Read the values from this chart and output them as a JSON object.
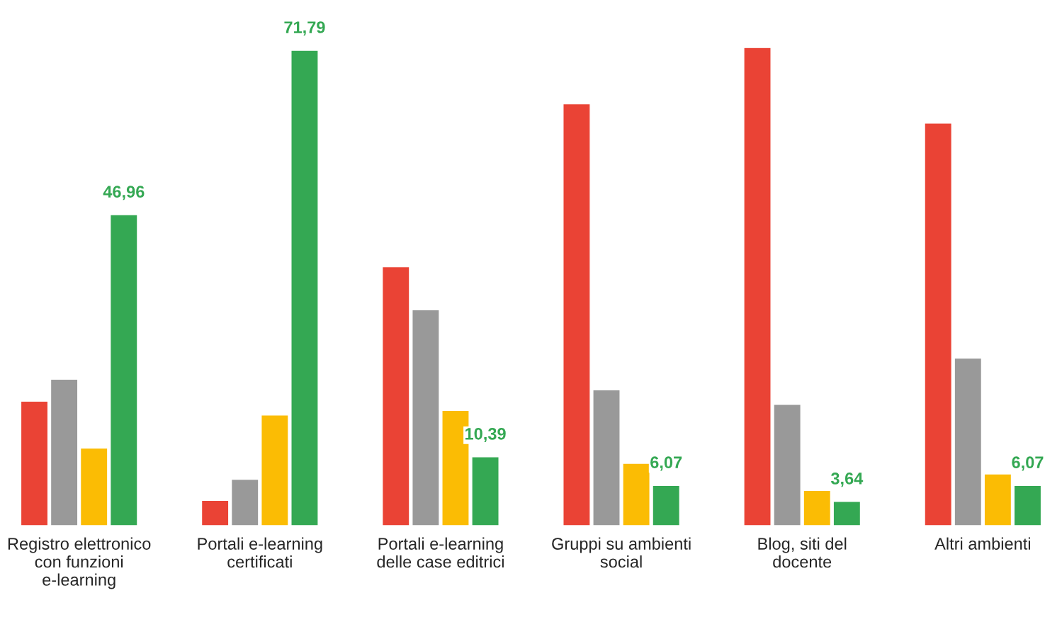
{
  "chart_data": {
    "type": "bar",
    "categories": [
      "Registro elettronico con funzioni e-learning",
      "Portali e-learning certificati",
      "Portali e-learning delle case editrici",
      "Gruppi su ambienti social",
      "Blog, siti del docente",
      "Altri ambienti"
    ],
    "series": [
      {
        "color": "#ea4335",
        "values": [
          18.8,
          3.8,
          39.1,
          63.7,
          72.2,
          60.8
        ]
      },
      {
        "color": "#999999",
        "values": [
          22.1,
          7.0,
          32.6,
          20.5,
          18.3,
          25.3
        ]
      },
      {
        "color": "#fbbc04",
        "values": [
          11.7,
          16.7,
          17.4,
          9.4,
          5.3,
          7.8
        ]
      },
      {
        "color": "#34a853",
        "values": [
          46.96,
          71.79,
          10.39,
          6.07,
          3.64,
          6.07
        ],
        "value_labels": [
          "46,96",
          "71,79",
          "10,39",
          "6,07",
          "3,64",
          "6,07"
        ]
      }
    ],
    "stacked": false
  }
}
